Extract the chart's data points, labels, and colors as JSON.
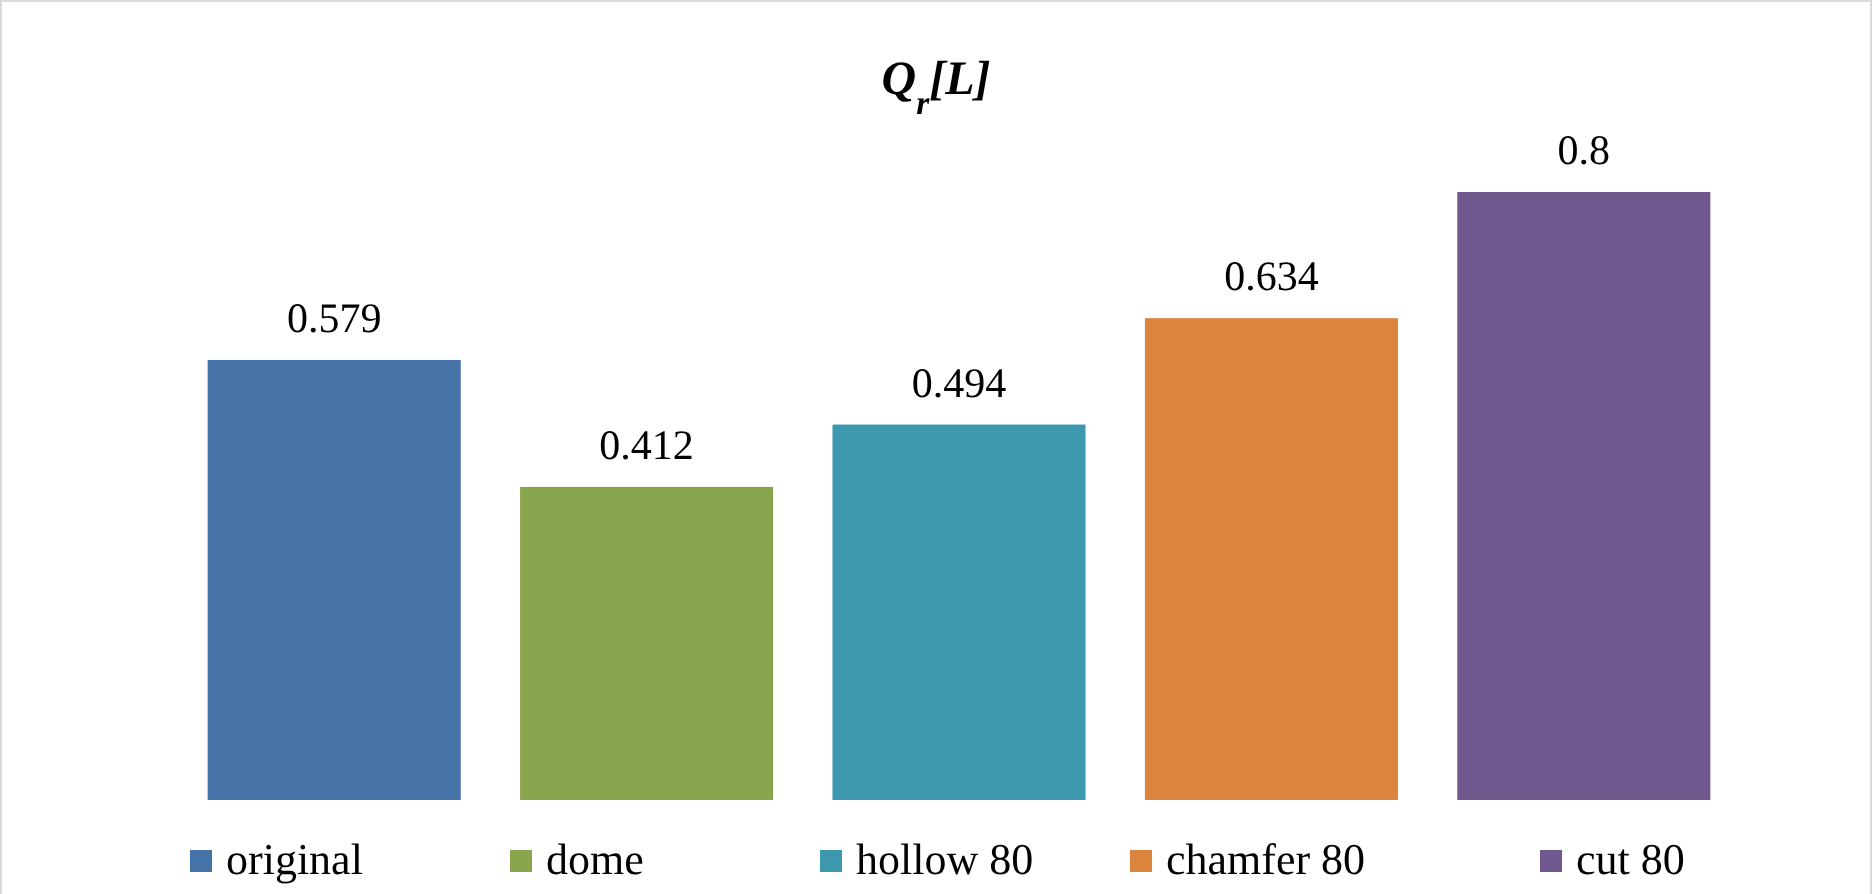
{
  "chart_data": {
    "type": "bar",
    "title": "Q$_{r}$[L]",
    "categories": [
      "original",
      "dome",
      "hollow 80",
      "chamfer 80",
      "cut 80"
    ],
    "values": [
      0.579,
      0.412,
      0.494,
      0.634,
      0.8
    ],
    "colors": [
      "#4573a7",
      "#89a54e",
      "#3d97ad",
      "#db843d",
      "#71588f"
    ],
    "data_labels": true
  }
}
